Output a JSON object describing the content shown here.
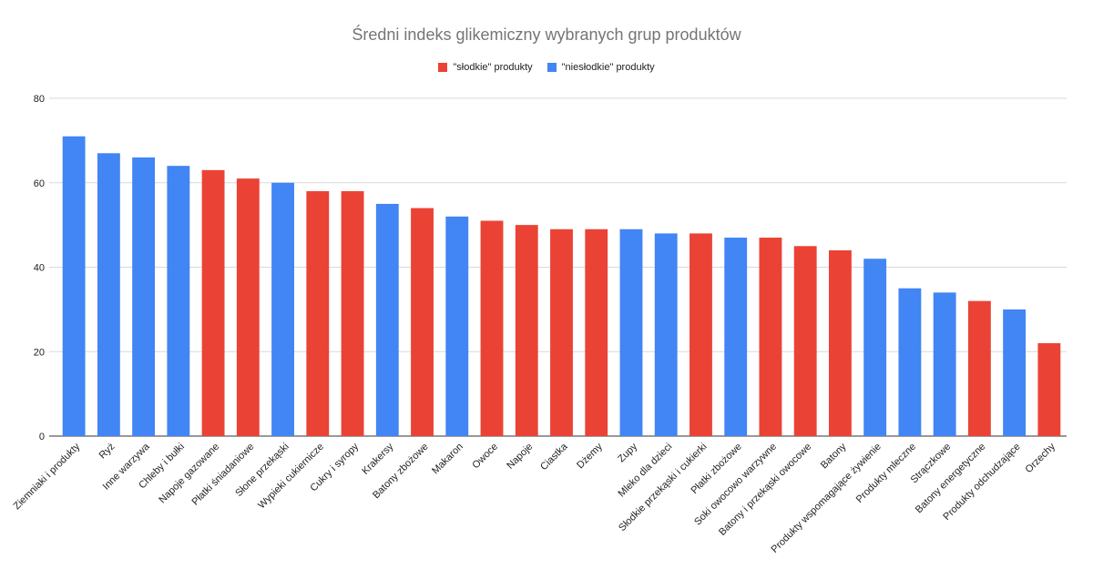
{
  "chart_data": {
    "type": "bar",
    "title": "Średni indeks glikemiczny wybranych grup produktów",
    "xlabel": "",
    "ylabel": "",
    "ylim": [
      0,
      80
    ],
    "yticks": [
      0,
      20,
      40,
      60,
      80
    ],
    "grid": true,
    "legend_position": "top-center",
    "series": [
      {
        "name": "\"słodkie\" produkty",
        "color": "#EA4335"
      },
      {
        "name": "\"niesłodkie\" produkty",
        "color": "#4285F4"
      }
    ],
    "categories": [
      "Ziemniaki i produkty",
      "Ryż",
      "Inne warzywa",
      "Chleby i bułki",
      "Napoje gazowane",
      "Płatki śniadaniowe",
      "Słone przekąski",
      "Wypieki cukiernicze",
      "Cukry i syropy",
      "Krakersy",
      "Batony zbożowe",
      "Makaron",
      "Owoce",
      "Napoje",
      "Ciastka",
      "Dżemy",
      "Zupy",
      "Mleko dla dzieci",
      "Słodkie przekąski i cukierki",
      "Płatki zbożowe",
      "Soki owocowo warzywne",
      "Batony i przekąski owocowe",
      "Batony",
      "Produkty wspomagające żywienie",
      "Produkty mleczne",
      "Strączkowe",
      "Batony energetyczne",
      "Produkty odchudzające",
      "Orzechy"
    ],
    "values": [
      71,
      67,
      66,
      64,
      63,
      61,
      60,
      58,
      58,
      55,
      54,
      52,
      51,
      50,
      49,
      49,
      49,
      48,
      48,
      47,
      47,
      45,
      44,
      42,
      35,
      34,
      32,
      30,
      22
    ],
    "series_index": [
      1,
      1,
      1,
      1,
      0,
      0,
      1,
      0,
      0,
      1,
      0,
      1,
      0,
      0,
      0,
      0,
      1,
      1,
      0,
      1,
      0,
      0,
      0,
      1,
      1,
      1,
      0,
      1,
      0
    ]
  }
}
